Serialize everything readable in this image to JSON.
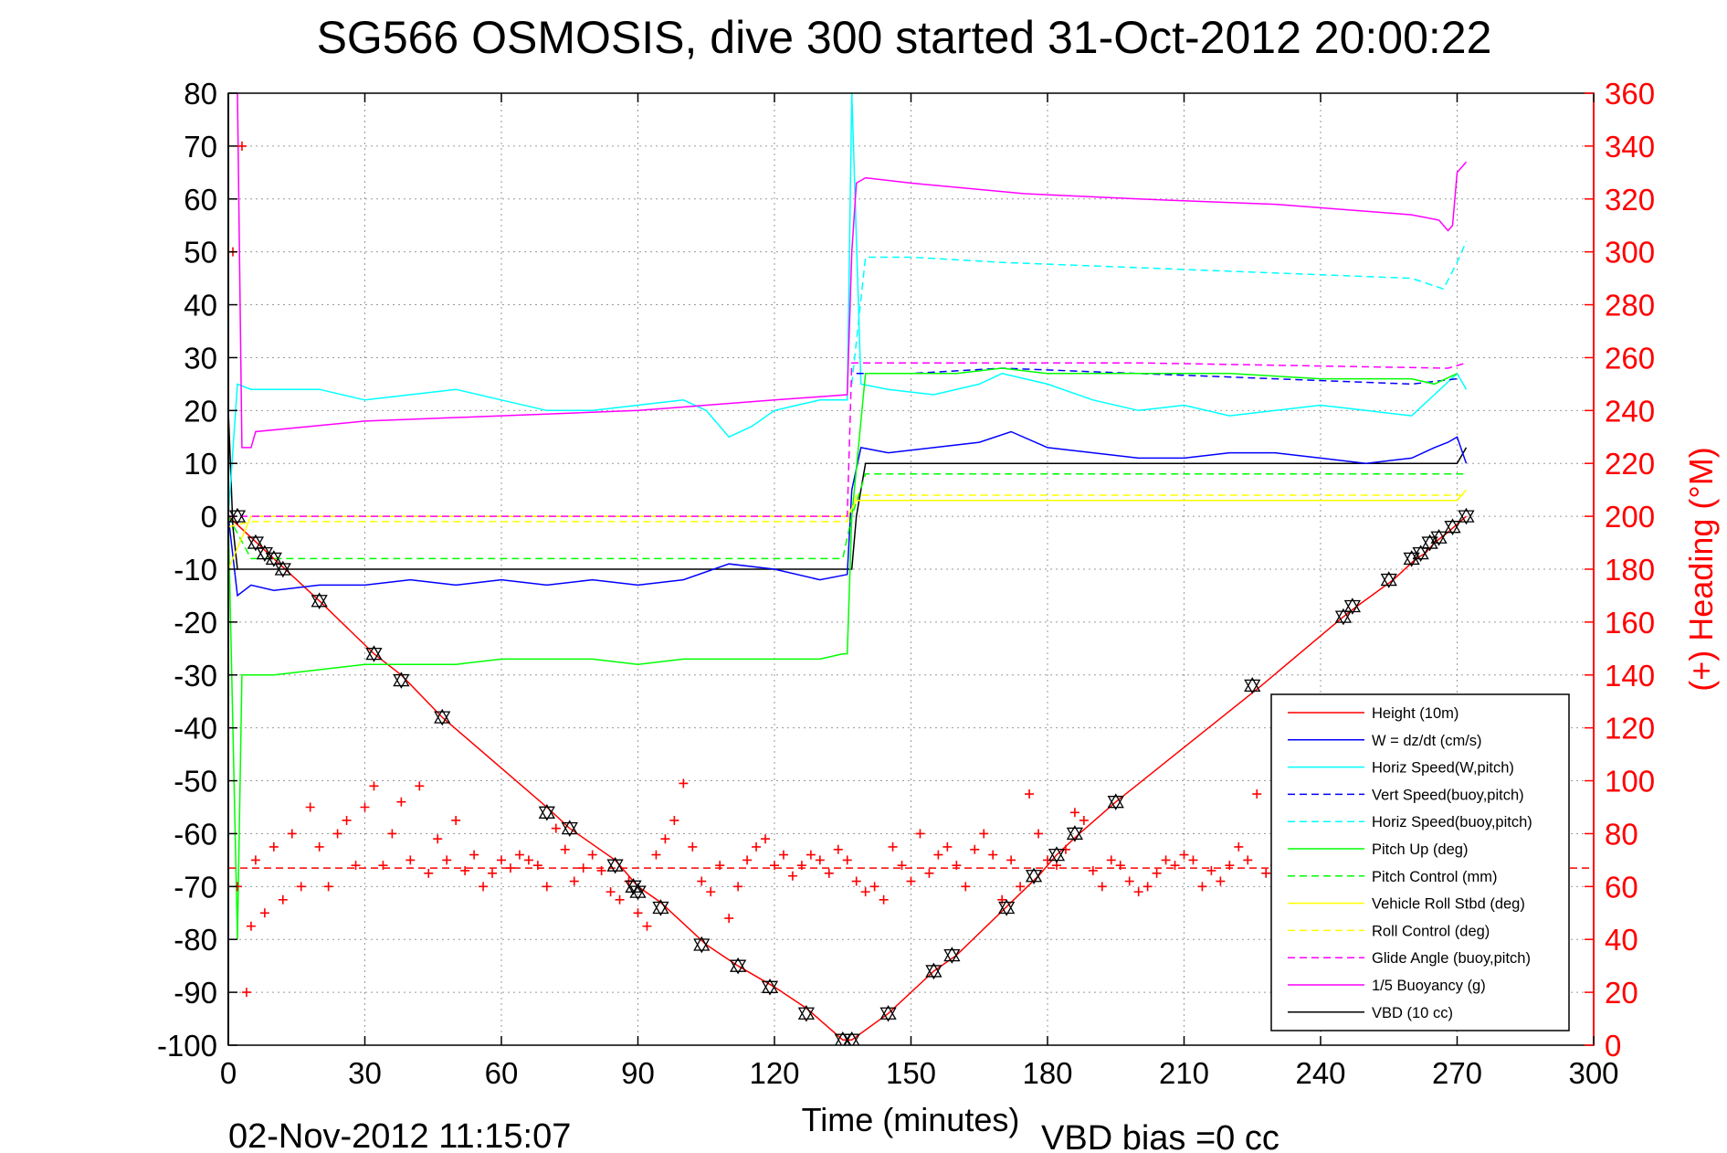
{
  "chart_data": {
    "type": "line",
    "title": "SG566 OSMOSIS, dive 300 started 31-Oct-2012 20:00:22",
    "xlabel": "Time (minutes)",
    "ylabel": "",
    "y2label": "(+) Heading (°M)",
    "xlim": [
      0,
      300
    ],
    "ylim": [
      -100,
      80
    ],
    "y2lim": [
      0,
      360
    ],
    "xticks": [
      "0",
      "30",
      "60",
      "90",
      "120",
      "150",
      "180",
      "210",
      "240",
      "270",
      "300"
    ],
    "yticks": [
      "80",
      "70",
      "60",
      "50",
      "40",
      "30",
      "20",
      "10",
      "0",
      "-10",
      "-20",
      "-30",
      "-40",
      "-50",
      "-60",
      "-70",
      "-80",
      "-90",
      "-100"
    ],
    "y2ticks": [
      "360",
      "340",
      "320",
      "300",
      "280",
      "260",
      "240",
      "220",
      "200",
      "180",
      "160",
      "140",
      "120",
      "100",
      "80",
      "60",
      "40",
      "20",
      "0"
    ],
    "grid": true,
    "legend_position": "bottom-right",
    "footer_left": "02-Nov-2012 11:15:07",
    "footer_right": "VBD bias =0 cc",
    "legend": [
      {
        "label": "Height (10m)",
        "color": "#ff0000",
        "dash": "solid"
      },
      {
        "label": "W = dz/dt (cm/s)",
        "color": "#0000ff",
        "dash": "solid"
      },
      {
        "label": "Horiz Speed(W,pitch)",
        "color": "#00ffff",
        "dash": "solid"
      },
      {
        "label": "Vert Speed(buoy,pitch)",
        "color": "#0000ff",
        "dash": "dashed"
      },
      {
        "label": "Horiz Speed(buoy,pitch)",
        "color": "#00ffff",
        "dash": "dashed"
      },
      {
        "label": "Pitch Up (deg)",
        "color": "#00ff00",
        "dash": "solid"
      },
      {
        "label": "Pitch Control (mm)",
        "color": "#00ff00",
        "dash": "dashed"
      },
      {
        "label": "Vehicle Roll Stbd (deg)",
        "color": "#ffff00",
        "dash": "solid"
      },
      {
        "label": "Roll Control (deg)",
        "color": "#ffff00",
        "dash": "dashed"
      },
      {
        "label": "Glide Angle (buoy,pitch)",
        "color": "#ff00ff",
        "dash": "dashed"
      },
      {
        "label": "1/5 Buoyancy (g)",
        "color": "#ff00ff",
        "dash": "solid"
      },
      {
        "label": "VBD (10 cc)",
        "color": "#000000",
        "dash": "solid"
      }
    ],
    "series": [
      {
        "name": "Height (10m)",
        "color": "#ff0000",
        "dash": "solid",
        "axis": "left",
        "x": [
          0,
          10,
          20,
          32,
          38,
          47,
          70,
          75,
          85,
          90,
          95,
          105,
          112,
          120,
          127,
          135,
          137,
          145,
          155,
          160,
          172,
          178,
          182,
          187,
          195,
          227,
          245,
          248,
          256,
          261,
          263,
          265,
          268,
          272
        ],
        "y": [
          0,
          -8,
          -16,
          -26,
          -30,
          -38,
          -55,
          -59,
          -65,
          -70,
          -73,
          -81,
          -85,
          -89,
          -93,
          -99,
          -99,
          -94,
          -86,
          -83,
          -73,
          -68,
          -64,
          -60,
          -54,
          -32,
          -19,
          -17,
          -12,
          -8,
          -7,
          -5,
          -3,
          0
        ]
      },
      {
        "name": "VBD (10 cc)",
        "color": "#000000",
        "dash": "solid",
        "axis": "left",
        "x": [
          0,
          1,
          2,
          137,
          138,
          140,
          270,
          272
        ],
        "y": [
          20,
          -2,
          -10,
          -10,
          0,
          10,
          10,
          13
        ]
      },
      {
        "name": "W = dz/dt (cm/s)",
        "color": "#0000ff",
        "dash": "solid",
        "axis": "left",
        "x": [
          0,
          2,
          5,
          10,
          20,
          30,
          40,
          50,
          60,
          70,
          80,
          90,
          100,
          110,
          120,
          130,
          136,
          137,
          139,
          145,
          155,
          165,
          172,
          180,
          190,
          200,
          210,
          220,
          230,
          240,
          250,
          260,
          265,
          268,
          270,
          272
        ],
        "y": [
          0,
          -15,
          -13,
          -14,
          -13,
          -13,
          -12,
          -13,
          -12,
          -13,
          -12,
          -13,
          -12,
          -9,
          -10,
          -12,
          -11,
          5,
          13,
          12,
          13,
          14,
          16,
          13,
          12,
          11,
          11,
          12,
          12,
          11,
          10,
          11,
          13,
          14,
          15,
          10
        ]
      },
      {
        "name": "Horiz Speed(W,pitch)",
        "color": "#00ffff",
        "dash": "solid",
        "axis": "left",
        "x": [
          0,
          2,
          5,
          10,
          20,
          30,
          40,
          50,
          60,
          70,
          80,
          90,
          100,
          105,
          110,
          115,
          120,
          125,
          130,
          136,
          137,
          139,
          145,
          155,
          165,
          170,
          180,
          190,
          200,
          210,
          220,
          230,
          240,
          250,
          260,
          265,
          270,
          272
        ],
        "y": [
          0,
          25,
          24,
          24,
          24,
          22,
          23,
          24,
          22,
          20,
          20,
          21,
          22,
          20,
          15,
          17,
          20,
          21,
          22,
          22,
          80,
          25,
          24,
          23,
          25,
          27,
          25,
          22,
          20,
          21,
          19,
          20,
          21,
          20,
          19,
          23,
          27,
          24
        ]
      },
      {
        "name": "Vert Speed(buoy,pitch)",
        "color": "#0000ff",
        "dash": "dashed",
        "axis": "left",
        "x": [
          138,
          150,
          170,
          200,
          230,
          260,
          270
        ],
        "y": [
          27,
          27,
          28,
          27,
          26,
          25,
          26
        ]
      },
      {
        "name": "Horiz Speed(buoy,pitch)",
        "color": "#00ffff",
        "dash": "dashed",
        "axis": "left",
        "x": [
          137,
          140,
          150,
          170,
          200,
          230,
          260,
          267,
          270,
          272
        ],
        "y": [
          25,
          49,
          49,
          48,
          47,
          46,
          45,
          43,
          48,
          52
        ]
      },
      {
        "name": "Pitch Up (deg)",
        "color": "#00ff00",
        "dash": "solid",
        "axis": "left",
        "x": [
          0,
          2,
          3,
          5,
          10,
          20,
          30,
          40,
          50,
          60,
          70,
          80,
          90,
          100,
          110,
          120,
          130,
          135,
          136,
          137,
          140,
          150,
          160,
          170,
          180,
          200,
          220,
          240,
          260,
          265,
          270
        ],
        "y": [
          0,
          -80,
          -30,
          -30,
          -30,
          -29,
          -28,
          -28,
          -28,
          -27,
          -27,
          -27,
          -28,
          -27,
          -27,
          -27,
          -27,
          -26,
          -26,
          0,
          27,
          27,
          27,
          28,
          27,
          27,
          27,
          26,
          26,
          25,
          27
        ]
      },
      {
        "name": "Pitch Control (mm)",
        "color": "#00ff00",
        "dash": "dashed",
        "axis": "left",
        "x": [
          0,
          5,
          10,
          135,
          137,
          140,
          200,
          268,
          272
        ],
        "y": [
          0,
          -8,
          -8,
          -8,
          0,
          8,
          8,
          8,
          8
        ]
      },
      {
        "name": "Vehicle Roll Stbd (deg)",
        "color": "#ffff00",
        "dash": "solid",
        "axis": "left",
        "x": [
          0,
          5,
          136,
          138,
          270,
          272
        ],
        "y": [
          -10,
          0,
          0,
          3,
          3,
          5
        ]
      },
      {
        "name": "Roll Control (deg)",
        "color": "#ffff00",
        "dash": "dashed",
        "axis": "left",
        "x": [
          0,
          5,
          136,
          138,
          270,
          272
        ],
        "y": [
          -2,
          -1,
          -1,
          4,
          4,
          4
        ]
      },
      {
        "name": "Glide Angle (buoy,pitch)",
        "color": "#ff00ff",
        "dash": "dashed",
        "axis": "left",
        "x": [
          0,
          136,
          137,
          140,
          200,
          268,
          272
        ],
        "y": [
          0,
          0,
          29,
          29,
          29,
          28,
          29
        ]
      },
      {
        "name": "1/5 Buoyancy (g)",
        "color": "#ff00ff",
        "dash": "solid",
        "axis": "left",
        "x": [
          2,
          3,
          5,
          6,
          30,
          60,
          90,
          120,
          136,
          137,
          138,
          140,
          150,
          175,
          200,
          230,
          260,
          266,
          268,
          269,
          270,
          272
        ],
        "y": [
          80,
          13,
          13,
          16,
          18,
          19,
          20,
          22,
          23,
          50,
          63,
          64,
          63,
          61,
          60,
          59,
          57,
          56,
          54,
          55,
          65,
          67
        ]
      },
      {
        "name": "(+) Heading",
        "color": "#ff0000",
        "dash": "markers",
        "axis": "right",
        "x": [
          1,
          2,
          3,
          4,
          5,
          6,
          8,
          10,
          12,
          14,
          16,
          18,
          20,
          22,
          24,
          26,
          28,
          30,
          32,
          34,
          36,
          38,
          40,
          42,
          44,
          46,
          48,
          50,
          52,
          54,
          56,
          58,
          60,
          62,
          64,
          66,
          68,
          70,
          72,
          74,
          76,
          78,
          80,
          82,
          84,
          86,
          88,
          90,
          92,
          94,
          96,
          98,
          100,
          102,
          104,
          106,
          108,
          110,
          112,
          114,
          116,
          118,
          120,
          122,
          124,
          126,
          128,
          130,
          132,
          134,
          136,
          138,
          140,
          142,
          144,
          146,
          148,
          150,
          152,
          154,
          156,
          158,
          160,
          162,
          164,
          166,
          168,
          170,
          172,
          174,
          176,
          178,
          180,
          182,
          184,
          186,
          188,
          190,
          192,
          194,
          196,
          198,
          200,
          202,
          204,
          206,
          208,
          210,
          212,
          214,
          216,
          218,
          220,
          222,
          224,
          226,
          228,
          230,
          232
        ],
        "y": [
          300,
          60,
          340,
          20,
          45,
          70,
          50,
          75,
          55,
          80,
          60,
          90,
          75,
          60,
          80,
          85,
          68,
          90,
          98,
          68,
          80,
          92,
          70,
          98,
          65,
          78,
          70,
          85,
          66,
          72,
          60,
          65,
          70,
          67,
          72,
          70,
          68,
          60,
          82,
          74,
          62,
          67,
          72,
          66,
          58,
          55,
          62,
          50,
          45,
          72,
          78,
          85,
          99,
          75,
          62,
          58,
          68,
          48,
          60,
          70,
          75,
          78,
          68,
          72,
          64,
          68,
          72,
          70,
          65,
          74,
          70,
          62,
          58,
          60,
          55,
          75,
          68,
          62,
          80,
          65,
          72,
          75,
          68,
          60,
          74,
          80,
          72,
          55,
          70,
          60,
          95,
          80,
          70,
          68,
          74,
          88,
          85,
          66,
          60,
          70,
          68,
          62,
          58,
          60,
          65,
          70,
          68,
          72,
          70,
          60,
          66,
          62,
          68,
          75,
          70,
          95,
          65,
          68,
          66
        ]
      },
      {
        "name": "Heading reference",
        "color": "#ff0000",
        "dash": "dashed",
        "axis": "right",
        "x": [
          0,
          300
        ],
        "y": [
          67,
          67
        ]
      },
      {
        "name": "Markers",
        "color": "#000000",
        "dash": "markers",
        "axis": "left",
        "x": [
          2,
          6,
          8,
          10,
          12,
          20,
          32,
          38,
          47,
          70,
          75,
          85,
          89,
          90,
          95,
          104,
          112,
          119,
          127,
          135,
          137,
          145,
          155,
          159,
          171,
          177,
          182,
          186,
          195,
          225,
          245,
          247,
          255,
          260,
          262,
          264,
          266,
          269,
          272
        ],
        "y": [
          0,
          -5,
          -7,
          -8,
          -10,
          -16,
          -26,
          -31,
          -38,
          -56,
          -59,
          -66,
          -70,
          -71,
          -74,
          -81,
          -85,
          -89,
          -94,
          -99,
          -99,
          -94,
          -86,
          -83,
          -74,
          -68,
          -64,
          -60,
          -54,
          -32,
          -19,
          -17,
          -12,
          -8,
          -7,
          -5,
          -4,
          -2,
          0
        ]
      }
    ]
  }
}
